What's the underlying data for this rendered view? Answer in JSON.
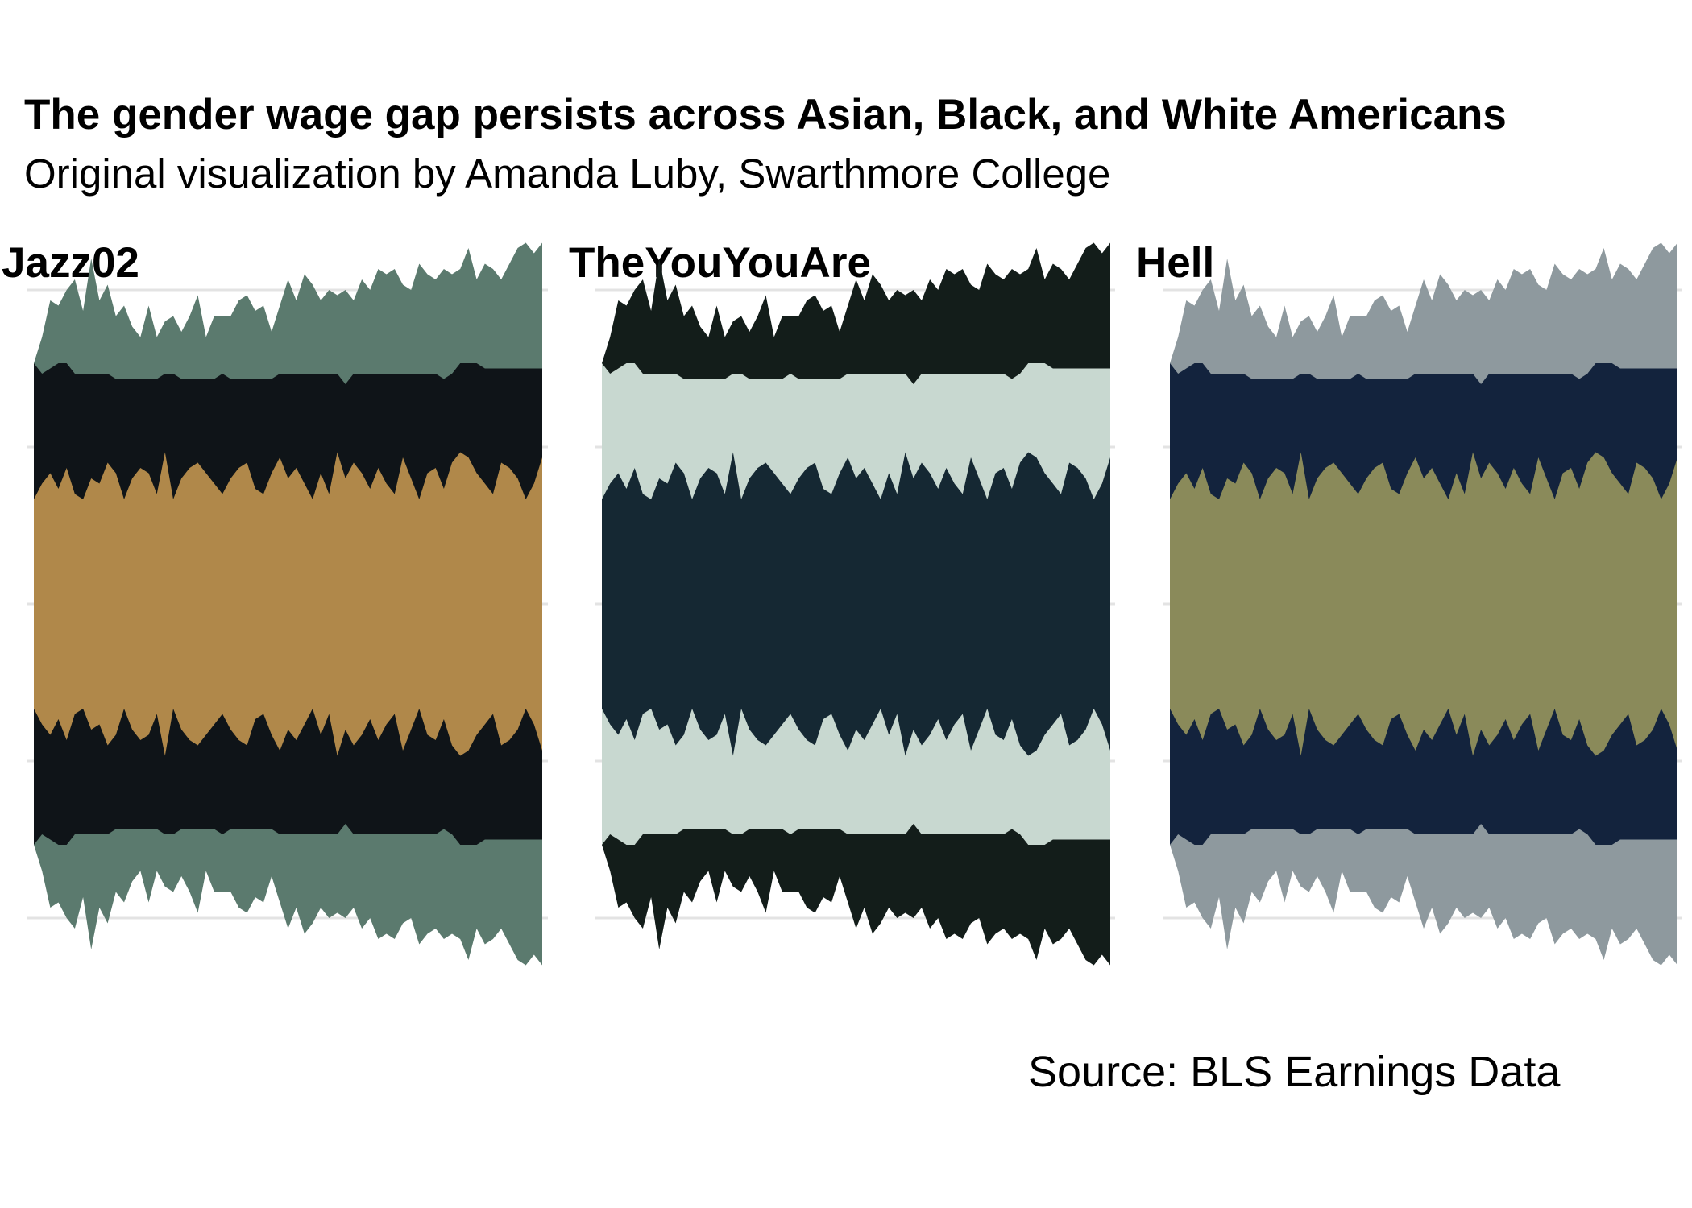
{
  "title": "The gender wage gap persists across Asian, Black, and White Americans",
  "subtitle": "Original visualization by Amanda Luby, Swarthmore College",
  "caption": "Source: BLS Earnings Data",
  "chart_data": {
    "type": "area",
    "layout": "streamgraph, three facets with identical data, different palettes",
    "grid": true,
    "axis_text": false,
    "legend": "none",
    "n_points": 63,
    "layers": [
      {
        "name_order": 0,
        "values": [
          1.0,
          1.15,
          1.25,
          1.1,
          1.3,
          1.05,
          1.0,
          1.2,
          1.15,
          1.35,
          1.25,
          1.0,
          1.2,
          1.3,
          1.25,
          1.05,
          1.45,
          1.0,
          1.2,
          1.3,
          1.35,
          1.25,
          1.15,
          1.05,
          1.2,
          1.3,
          1.35,
          1.1,
          1.05,
          1.25,
          1.4,
          1.2,
          1.3,
          1.15,
          1.0,
          1.25,
          1.05,
          1.45,
          1.2,
          1.35,
          1.25,
          1.1,
          1.3,
          1.15,
          1.05,
          1.4,
          1.2,
          1.0,
          1.25,
          1.3,
          1.1,
          1.35,
          1.45,
          1.4,
          1.25,
          1.15,
          1.05,
          1.35,
          1.3,
          1.2,
          1.0,
          1.15,
          1.4
        ]
      },
      {
        "name_order": 1,
        "values": [
          1.3,
          1.05,
          1.0,
          1.2,
          1.0,
          1.15,
          1.2,
          1.0,
          1.05,
          0.85,
          0.9,
          1.15,
          0.95,
          0.85,
          0.9,
          1.1,
          0.75,
          1.2,
          0.95,
          0.85,
          0.8,
          0.9,
          1.0,
          1.15,
          0.95,
          0.85,
          0.8,
          1.05,
          1.1,
          0.9,
          0.8,
          1.0,
          0.9,
          1.05,
          1.2,
          0.95,
          1.15,
          0.75,
          0.9,
          0.85,
          0.95,
          1.1,
          0.9,
          1.05,
          1.15,
          0.8,
          1.0,
          1.2,
          0.95,
          0.9,
          1.05,
          0.85,
          0.85,
          0.9,
          1.05,
          1.1,
          1.2,
          0.9,
          0.95,
          1.05,
          1.25,
          1.1,
          0.85
        ]
      },
      {
        "name_order": 2,
        "values": [
          0.0,
          0.35,
          0.65,
          0.55,
          0.7,
          0.9,
          0.6,
          1.1,
          0.7,
          0.85,
          0.6,
          0.7,
          0.5,
          0.4,
          0.7,
          0.4,
          0.5,
          0.55,
          0.45,
          0.6,
          0.8,
          0.4,
          0.6,
          0.55,
          0.6,
          0.75,
          0.8,
          0.65,
          0.7,
          0.45,
          0.65,
          0.9,
          0.7,
          0.95,
          0.85,
          0.7,
          0.8,
          0.75,
          0.9,
          0.7,
          0.9,
          0.8,
          1.0,
          0.95,
          1.0,
          0.85,
          0.8,
          1.05,
          0.95,
          0.9,
          1.05,
          0.95,
          0.9,
          1.1,
          0.8,
          1.0,
          0.95,
          0.85,
          1.0,
          1.15,
          1.2,
          1.1,
          1.2
        ]
      }
    ]
  },
  "facets": [
    {
      "label": "Jazz02",
      "colors": [
        "#b0884a",
        "#0f1418",
        "#5b7a6e"
      ]
    },
    {
      "label": "TheYouYouAre",
      "colors": [
        "#152833",
        "#c8d8d0",
        "#131d1a"
      ]
    },
    {
      "label": "Hell",
      "colors": [
        "#8a8a5a",
        "#13233d",
        "#8e999e"
      ]
    }
  ]
}
